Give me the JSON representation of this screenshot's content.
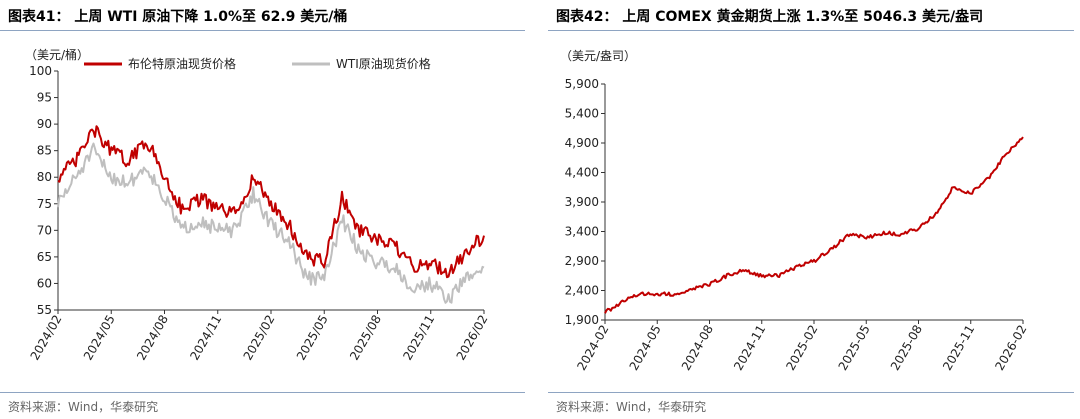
{
  "charts": [
    {
      "title": "图表41： 上周 WTI 原油下降 1.0%至 62.9 美元/桶",
      "source": "资料来源：Wind，华泰研究",
      "unit": "（美元/桶）"
    },
    {
      "title": "图表42： 上周 COMEX 黄金期货上涨 1.3%至 5046.3 美元/盎司",
      "source": "资料来源：Wind，华泰研究",
      "unit": "（美元/盎司）"
    }
  ],
  "chart_data": [
    {
      "type": "line",
      "title": "图表41： 上周 WTI 原油下降 1.0%至 62.9 美元/桶",
      "ylabel": "（美元/桶）",
      "ylim": [
        55,
        100
      ],
      "yticks": [
        55,
        60,
        65,
        70,
        75,
        80,
        85,
        90,
        95,
        100
      ],
      "xlim": [
        "2024-02",
        "2026-02"
      ],
      "xticks": [
        "2024/02",
        "2024/05",
        "2024/08",
        "2024/11",
        "2025/02",
        "2025/05",
        "2025/08",
        "2025/11",
        "2026/02"
      ],
      "grid": false,
      "legend_position": "top",
      "series": [
        {
          "name": "布伦特原油现货价格",
          "color": "#c00000",
          "x": [
            "2024-02",
            "2024-03",
            "2024-04",
            "2024-05",
            "2024-06",
            "2024-07",
            "2024-08",
            "2024-09",
            "2024-10",
            "2024-11",
            "2024-12",
            "2025-01",
            "2025-02",
            "2025-03",
            "2025-04",
            "2025-05",
            "2025-06",
            "2025-07",
            "2025-08",
            "2025-09",
            "2025-10",
            "2025-11",
            "2025-12",
            "2026-01",
            "2026-02"
          ],
          "values": [
            80,
            83,
            89,
            85,
            83,
            87,
            80,
            74,
            76,
            74,
            73,
            80,
            75,
            71,
            65,
            64,
            76,
            70,
            68,
            67,
            63,
            64,
            62,
            66,
            69
          ]
        },
        {
          "name": "WTI原油现货价格",
          "color": "#bfbfbf",
          "x": [
            "2024-02",
            "2024-03",
            "2024-04",
            "2024-05",
            "2024-06",
            "2024-07",
            "2024-08",
            "2024-09",
            "2024-10",
            "2024-11",
            "2024-12",
            "2025-01",
            "2025-02",
            "2025-03",
            "2025-04",
            "2025-05",
            "2025-06",
            "2025-07",
            "2025-08",
            "2025-09",
            "2025-10",
            "2025-11",
            "2025-12",
            "2026-01",
            "2026-02"
          ],
          "values": [
            75,
            80,
            85,
            80,
            79,
            82,
            76,
            70,
            72,
            70,
            70,
            77,
            71,
            68,
            61,
            61,
            72,
            66,
            64,
            63,
            59,
            60,
            57,
            61,
            63
          ]
        }
      ]
    },
    {
      "type": "line",
      "title": "图表42： 上周 COMEX 黄金期货上涨 1.3%至 5046.3 美元/盎司",
      "ylabel": "（美元/盎司）",
      "ylim": [
        1900,
        5900
      ],
      "yticks": [
        1900,
        2400,
        2900,
        3400,
        3900,
        4400,
        4900,
        5400,
        5900
      ],
      "xlim": [
        "2024-02",
        "2026-02"
      ],
      "xticks": [
        "2024-02",
        "2024-05",
        "2024-08",
        "2024-11",
        "2025-02",
        "2025-05",
        "2025-08",
        "2025-11",
        "2026-02"
      ],
      "grid": false,
      "series": [
        {
          "name": "",
          "color": "#c00000",
          "x": [
            "2024-02",
            "2024-03",
            "2024-04",
            "2024-05",
            "2024-06",
            "2024-07",
            "2024-08",
            "2024-09",
            "2024-10",
            "2024-11",
            "2024-12",
            "2025-01",
            "2025-02",
            "2025-03",
            "2025-04",
            "2025-05",
            "2025-06",
            "2025-07",
            "2025-08",
            "2025-09",
            "2025-10",
            "2025-11",
            "2025-12",
            "2026-01",
            "2026-02"
          ],
          "values": [
            2030,
            2200,
            2350,
            2340,
            2330,
            2430,
            2500,
            2650,
            2750,
            2650,
            2650,
            2800,
            2900,
            3100,
            3350,
            3300,
            3380,
            3350,
            3450,
            3700,
            4150,
            4050,
            4300,
            4700,
            5000
          ]
        }
      ]
    }
  ]
}
